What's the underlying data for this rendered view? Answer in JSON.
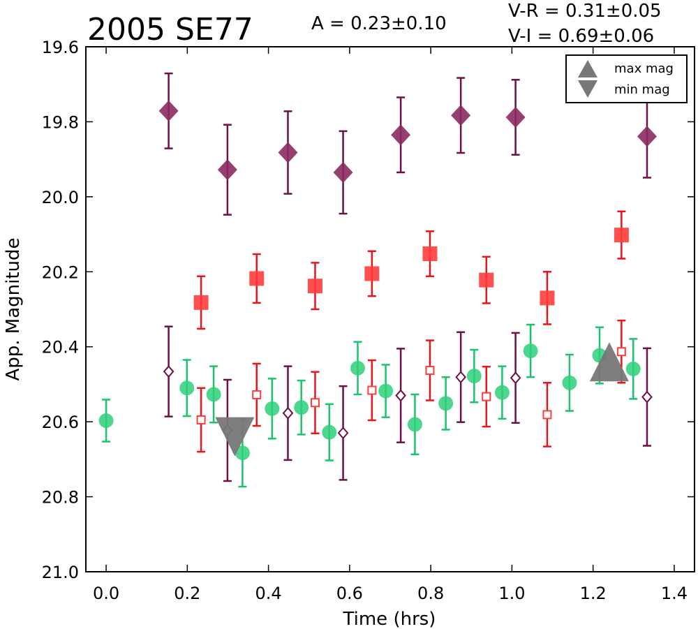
{
  "chart_data": {
    "type": "scatter",
    "title": "2005 SE77",
    "annotation_amplitude": "A  = 0.23±0.10",
    "annotation_vr": "V-R = 0.31±0.05",
    "annotation_vi": "V-I  = 0.69±0.06",
    "xlabel": "Time (hrs)",
    "ylabel": "App. Magnitude",
    "xlim": [
      -0.05,
      1.45
    ],
    "ylim": [
      21.0,
      19.6
    ],
    "y_inverted": true,
    "x_ticks": [
      0.0,
      0.2,
      0.4,
      0.6,
      0.8,
      1.0,
      1.2,
      1.4
    ],
    "x_tick_labels": [
      "0.0",
      "0.2",
      "0.4",
      "0.6",
      "0.8",
      "1.0",
      "1.2",
      "1.4"
    ],
    "y_ticks": [
      19.6,
      19.8,
      20.0,
      20.2,
      20.4,
      20.6,
      20.8,
      21.0
    ],
    "y_tick_labels": [
      "19.6",
      "19.8",
      "20.0",
      "20.2",
      "20.4",
      "20.6",
      "20.8",
      "21.0"
    ],
    "grid": false,
    "legend": {
      "placement": "top-right",
      "entries": [
        {
          "label": "max mag",
          "marker": "triangle-up",
          "color": "#777777"
        },
        {
          "label": "min mag",
          "marker": "triangle-down",
          "color": "#777777"
        }
      ]
    },
    "series": [
      {
        "marker": "diamond",
        "filled": true,
        "color": "#8b2a62",
        "errcolor": "#6e0f45",
        "x": [
          0.154,
          0.299,
          0.448,
          0.584,
          0.726,
          0.874,
          1.009,
          1.333
        ],
        "y": [
          19.771,
          19.928,
          19.882,
          19.935,
          19.835,
          19.783,
          19.788,
          19.839
        ],
        "err": [
          0.1,
          0.12,
          0.11,
          0.11,
          0.1,
          0.1,
          0.1,
          0.11
        ]
      },
      {
        "marker": "square",
        "filled": true,
        "color": "#ff3c3c",
        "errcolor": "#e8141c",
        "x": [
          0.234,
          0.371,
          0.515,
          0.655,
          0.798,
          0.937,
          1.087,
          1.27
        ],
        "y": [
          20.282,
          20.218,
          20.238,
          20.205,
          20.152,
          20.222,
          20.27,
          20.102
        ],
        "err": [
          0.07,
          0.065,
          0.062,
          0.06,
          0.06,
          0.062,
          0.07,
          0.063
        ]
      },
      {
        "marker": "circle",
        "filled": true,
        "color": "#2ecf7a",
        "errcolor": "#19c46c",
        "x": [
          0.0,
          0.199,
          0.265,
          0.336,
          0.409,
          0.481,
          0.55,
          0.62,
          0.689,
          0.761,
          0.837,
          0.907,
          0.976,
          1.046,
          1.142,
          1.216,
          1.299
        ],
        "y": [
          20.597,
          20.51,
          20.527,
          20.683,
          20.565,
          20.562,
          20.628,
          20.457,
          20.518,
          20.607,
          20.551,
          20.478,
          20.522,
          20.411,
          20.496,
          20.423,
          20.459
        ],
        "err": [
          0.056,
          0.075,
          0.075,
          0.09,
          0.08,
          0.072,
          0.075,
          0.07,
          0.07,
          0.08,
          0.07,
          0.07,
          0.07,
          0.07,
          0.075,
          0.075,
          0.08
        ]
      },
      {
        "marker": "square",
        "filled": false,
        "color": "#ff3c3c",
        "errcolor": "#e8141c",
        "x": [
          0.234,
          0.371,
          0.515,
          0.655,
          0.798,
          0.937,
          1.087,
          1.27
        ],
        "y": [
          20.595,
          20.528,
          20.549,
          20.516,
          20.463,
          20.533,
          20.581,
          20.413
        ],
        "err": [
          0.085,
          0.083,
          0.082,
          0.08,
          0.08,
          0.08,
          0.085,
          0.083
        ]
      },
      {
        "marker": "diamond",
        "filled": false,
        "color": "#6e0f45",
        "errcolor": "#6e0f45",
        "x": [
          0.154,
          0.299,
          0.448,
          0.584,
          0.726,
          0.874,
          1.009,
          1.333
        ],
        "y": [
          20.466,
          20.623,
          20.577,
          20.63,
          20.53,
          20.481,
          20.483,
          20.534
        ],
        "err": [
          0.12,
          0.135,
          0.125,
          0.125,
          0.125,
          0.12,
          0.12,
          0.13
        ]
      }
    ],
    "extrema": [
      {
        "label": "max mag",
        "marker": "triangle-up",
        "x": 1.24,
        "y": 20.44,
        "color": "#777777"
      },
      {
        "label": "min mag",
        "marker": "triangle-down",
        "x": 0.317,
        "y": 20.64,
        "color": "#777777"
      }
    ]
  }
}
